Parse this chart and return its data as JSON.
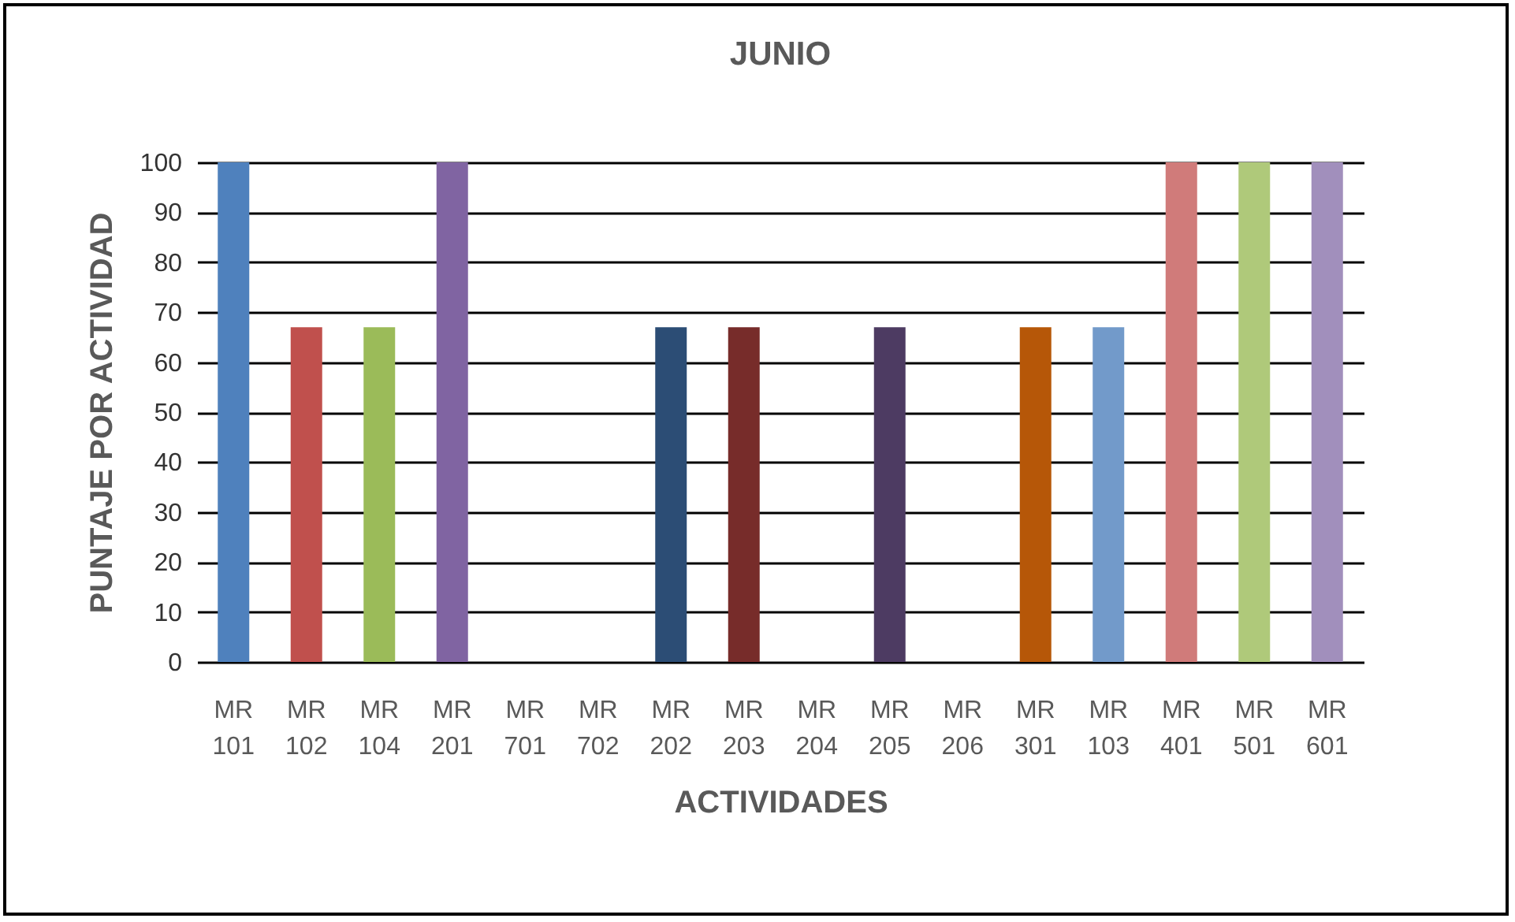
{
  "chart_data": {
    "type": "bar",
    "title": "JUNIO",
    "xlabel": "ACTIVIDADES",
    "ylabel": "PUNTAJE POR ACTIVIDAD",
    "categories": [
      "MR 101",
      "MR 102",
      "MR 104",
      "MR 201",
      "MR 701",
      "MR 702",
      "MR 202",
      "MR 203",
      "MR 204",
      "MR 205",
      "MR 206",
      "MR 301",
      "MR 103",
      "MR 401",
      "MR 501",
      "MR 601"
    ],
    "values": [
      100,
      67,
      67,
      100,
      0,
      0,
      67,
      67,
      0,
      67,
      0,
      67,
      67,
      100,
      100,
      100
    ],
    "colors": [
      "#4f81bd",
      "#c0504d",
      "#9bbb59",
      "#8064a2",
      "#4bacc6",
      "#f79646",
      "#2c4d75",
      "#772c2a",
      "#5f7530",
      "#4d3b62",
      "#276a7c",
      "#b65708",
      "#729aca",
      "#d07b7a",
      "#afc97a",
      "#a18fbc"
    ],
    "ylim": [
      0,
      100
    ],
    "yticks": [
      0,
      10,
      20,
      30,
      40,
      50,
      60,
      70,
      80,
      90,
      100
    ],
    "grid": "y",
    "legend": false
  }
}
